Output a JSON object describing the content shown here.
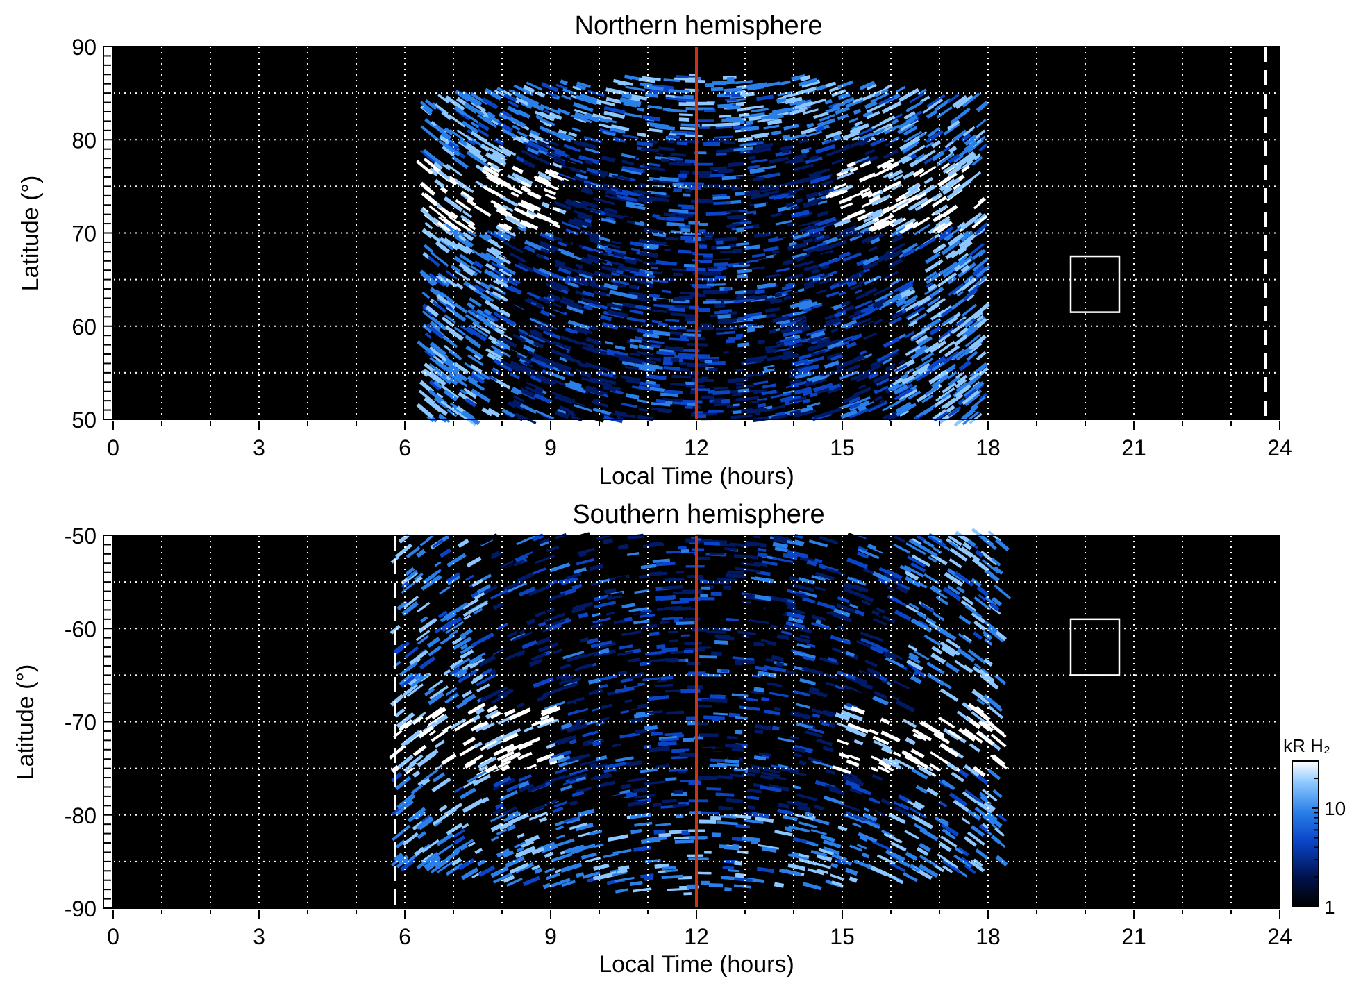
{
  "colors": {
    "background": "#000000",
    "axis": "#000000",
    "grid": "#ffffff",
    "noon_line": "#cc3311",
    "colormap": [
      "#000000",
      "#001a66",
      "#0a45c8",
      "#2a7fe8",
      "#8cc8ff",
      "#ffffff"
    ]
  },
  "chart_data": [
    {
      "type": "heatmap",
      "title": "Northern hemisphere",
      "xlabel": "Local Time (hours)",
      "ylabel": "Latitude (°)",
      "xlim": [
        0,
        24
      ],
      "ylim": [
        50,
        90
      ],
      "x_ticks": [
        0,
        3,
        6,
        9,
        12,
        15,
        18,
        21,
        24
      ],
      "x_tick_labels": [
        "0",
        "3",
        "6",
        "9",
        "12",
        "15",
        "18",
        "21",
        "24"
      ],
      "y_ticks": [
        50,
        60,
        70,
        80,
        90
      ],
      "y_tick_labels": [
        "50",
        "60",
        "70",
        "80",
        "90"
      ],
      "grid": true,
      "noon_line_x": 12,
      "dashed_line_x": 23.7,
      "reference_box": {
        "x": [
          19.7,
          20.7
        ],
        "y": [
          61.5,
          67.5
        ]
      },
      "coverage": {
        "lt_start": 6.4,
        "lt_end": 17.9,
        "lat_edge": 87
      },
      "auroral_oval": {
        "bright_segments": [
          "morning 6.8–9 LT near 73°",
          "dusk 14.5–17 LT near 76°"
        ]
      },
      "value": "emission brightness (kR H₂)"
    },
    {
      "type": "heatmap",
      "title": "Southern hemisphere",
      "xlabel": "Local Time (hours)",
      "ylabel": "Latitude (°)",
      "xlim": [
        0,
        24
      ],
      "ylim": [
        -90,
        -50
      ],
      "x_ticks": [
        0,
        3,
        6,
        9,
        12,
        15,
        18,
        21,
        24
      ],
      "x_tick_labels": [
        "0",
        "3",
        "6",
        "9",
        "12",
        "15",
        "18",
        "21",
        "24"
      ],
      "y_ticks": [
        -50,
        -60,
        -70,
        -80,
        -90
      ],
      "y_tick_labels": [
        "-50",
        "-60",
        "-70",
        "-80",
        "-90"
      ],
      "grid": true,
      "noon_line_x": 12,
      "dashed_line_x": 5.8,
      "reference_box": {
        "x": [
          19.7,
          20.7
        ],
        "y": [
          -65,
          -59
        ]
      },
      "coverage": {
        "lt_start": 5.8,
        "lt_end": 18.3,
        "lat_edge": -88.5
      },
      "auroral_oval": {
        "bright_segments": [
          "morning 6–10 LT near -72°",
          "dusk 16–18 LT near -72°"
        ]
      },
      "value": "emission brightness (kR H₂)"
    }
  ],
  "colorbar": {
    "label": "kR H₂",
    "scale": "log",
    "range": [
      1,
      30
    ],
    "tick_labels": [
      "1",
      "10"
    ],
    "tick_values": [
      1,
      10
    ]
  }
}
